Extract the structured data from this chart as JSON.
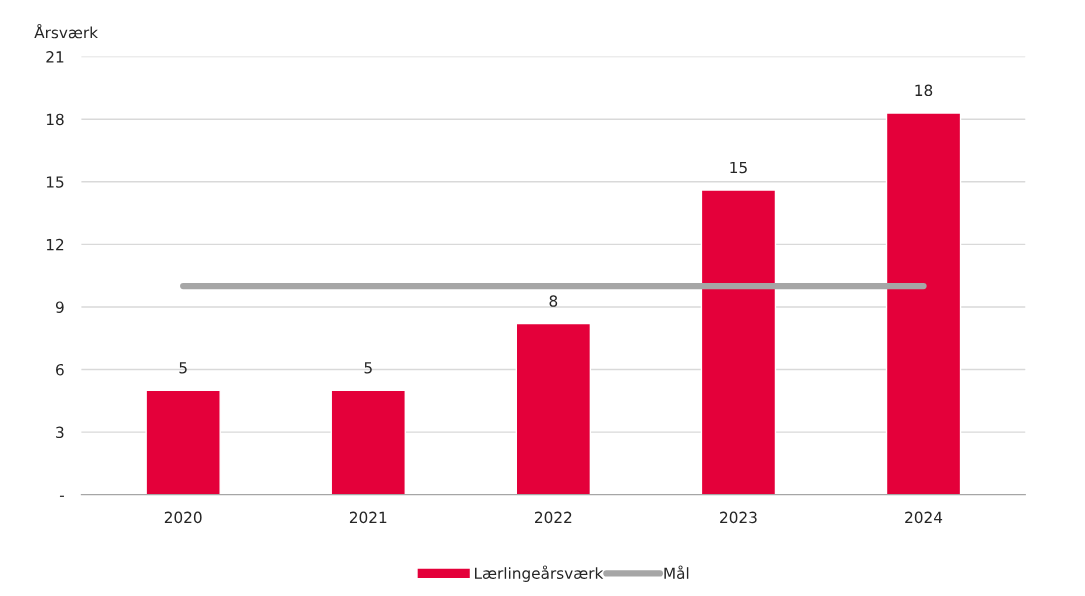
{
  "chart_data": {
    "type": "bar",
    "ylabel": "Årsværk",
    "categories": [
      "2020",
      "2021",
      "2022",
      "2023",
      "2024"
    ],
    "series": [
      {
        "name": "Lærlingeårsværk",
        "color": "#e4003a",
        "values": [
          5.0,
          5.0,
          8.2,
          14.6,
          18.3
        ],
        "value_labels": [
          "5",
          "5",
          "8",
          "15",
          "18"
        ]
      },
      {
        "name": "Mål",
        "type": "line",
        "color": "#a6a6a6",
        "values": [
          10,
          10,
          10,
          10,
          10
        ]
      }
    ],
    "ylim": [
      0,
      21
    ],
    "yticks": [
      {
        "value": 0,
        "label": "-"
      },
      3,
      6,
      9,
      12,
      15,
      18,
      21
    ],
    "grid": "y",
    "legend": "bottom",
    "marker": "none",
    "line_style": "solid"
  }
}
